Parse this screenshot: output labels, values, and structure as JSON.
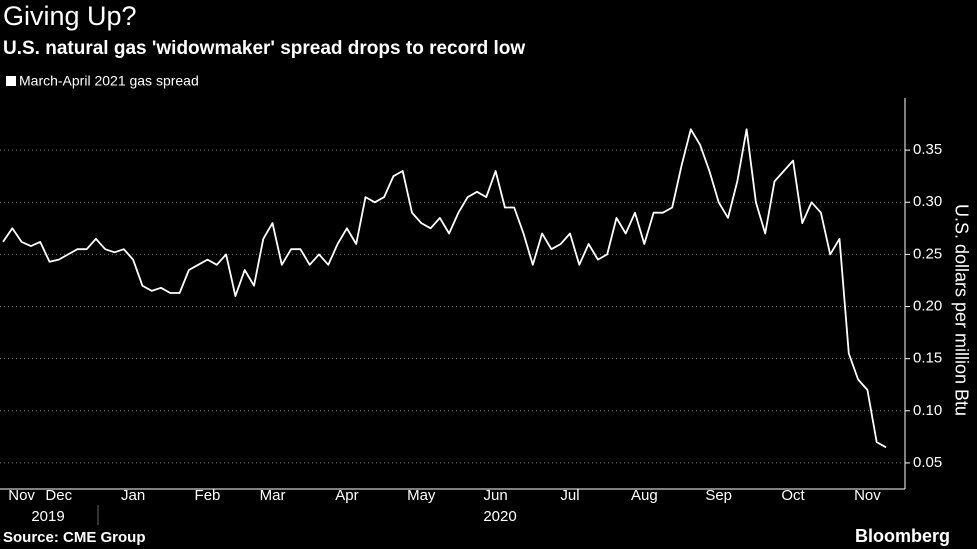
{
  "chart_data": {
    "type": "line",
    "title": "Giving Up?",
    "subtitle": "U.S. natural gas 'widowmaker' spread drops to record low",
    "y_axis_label": "U.S. dollars per million Btu",
    "source": "Source: CME Group",
    "brand": "Bloomberg",
    "years": [
      "2019",
      "2020"
    ],
    "categories": [
      null,
      null,
      "Nov",
      null,
      null,
      null,
      "Dec",
      null,
      null,
      null,
      null,
      null,
      null,
      null,
      "Jan",
      null,
      null,
      null,
      null,
      null,
      null,
      null,
      "Feb",
      null,
      null,
      null,
      null,
      null,
      null,
      "Mar",
      null,
      null,
      null,
      null,
      null,
      null,
      null,
      "Apr",
      null,
      null,
      null,
      null,
      null,
      null,
      null,
      "May",
      null,
      null,
      null,
      null,
      null,
      null,
      null,
      "Jun",
      null,
      null,
      null,
      null,
      null,
      null,
      null,
      "Jul",
      null,
      null,
      null,
      null,
      null,
      null,
      null,
      "Aug",
      null,
      null,
      null,
      null,
      null,
      null,
      null,
      "Sep",
      null,
      null,
      null,
      null,
      null,
      null,
      null,
      "Oct",
      null,
      null,
      null,
      null,
      null,
      null,
      null,
      "Nov",
      null,
      null
    ],
    "series": [
      {
        "name": "March-April 2021 gas spread",
        "color": "#ffffff",
        "values": [
          0.262,
          0.275,
          0.262,
          0.258,
          0.262,
          0.243,
          0.245,
          0.25,
          0.255,
          0.255,
          0.265,
          0.255,
          0.252,
          0.255,
          0.245,
          0.22,
          0.215,
          0.218,
          0.213,
          0.213,
          0.235,
          0.24,
          0.245,
          0.24,
          0.25,
          0.21,
          0.235,
          0.22,
          0.265,
          0.28,
          0.24,
          0.255,
          0.255,
          0.24,
          0.25,
          0.24,
          0.26,
          0.275,
          0.26,
          0.305,
          0.3,
          0.305,
          0.325,
          0.33,
          0.29,
          0.28,
          0.275,
          0.285,
          0.27,
          0.29,
          0.305,
          0.31,
          0.305,
          0.33,
          0.295,
          0.295,
          0.27,
          0.24,
          0.27,
          0.255,
          0.26,
          0.27,
          0.24,
          0.26,
          0.245,
          0.25,
          0.285,
          0.27,
          0.29,
          0.26,
          0.29,
          0.29,
          0.295,
          0.335,
          0.37,
          0.355,
          0.33,
          0.3,
          0.285,
          0.32,
          0.37,
          0.3,
          0.27,
          0.32,
          0.33,
          0.34,
          0.28,
          0.3,
          0.29,
          0.25,
          0.265,
          0.155,
          0.13,
          0.12,
          0.07,
          0.065
        ]
      }
    ],
    "ylim": [
      0.025,
      0.4
    ],
    "yticks": [
      0.05,
      {
        "value": 0.1,
        "label": "0.10"
      },
      0.15,
      {
        "value": 0.2,
        "label": "0.20"
      },
      0.25,
      {
        "value": 0.3,
        "label": "0.30"
      },
      0.35
    ],
    "grid": true
  }
}
